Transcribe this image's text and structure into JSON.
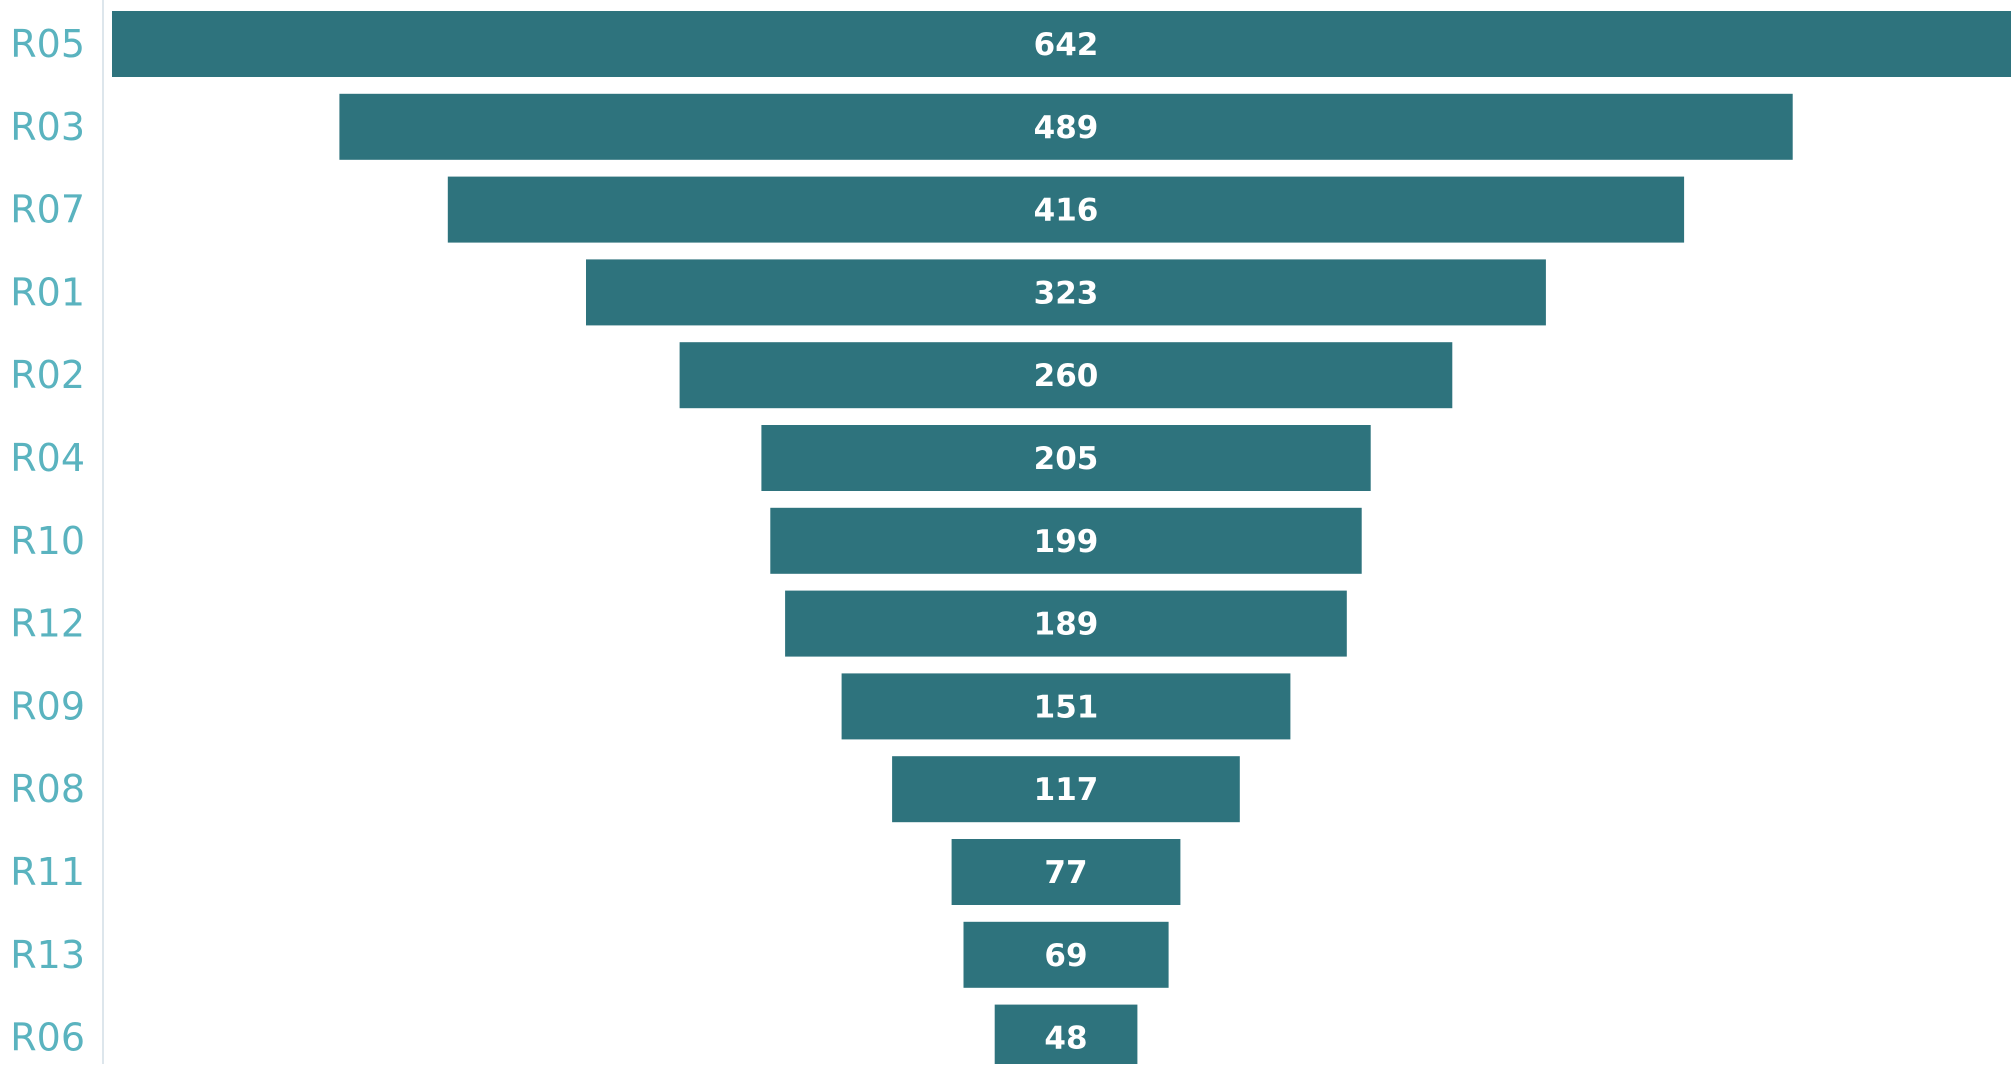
{
  "chart_data": {
    "type": "bar",
    "subtype": "funnel",
    "orientation": "horizontal",
    "categories": [
      "R05",
      "R03",
      "R07",
      "R01",
      "R02",
      "R04",
      "R10",
      "R12",
      "R09",
      "R08",
      "R11",
      "R13",
      "R06"
    ],
    "values": [
      642,
      489,
      416,
      323,
      260,
      205,
      199,
      189,
      151,
      117,
      77,
      69,
      48
    ],
    "data_labels": [
      "642",
      "489",
      "416",
      "323",
      "260",
      "205",
      "199",
      "189",
      "151",
      "117",
      "77",
      "69",
      "48"
    ],
    "title": "",
    "xlabel": "",
    "ylabel": "",
    "xlim": [
      0,
      642
    ],
    "grid": false,
    "legend": "none"
  },
  "colors": {
    "bar": "#2e737d",
    "bar_label": "#ffffff",
    "category_label": "#5ab3bf",
    "axis_line": "#dde6ec"
  }
}
